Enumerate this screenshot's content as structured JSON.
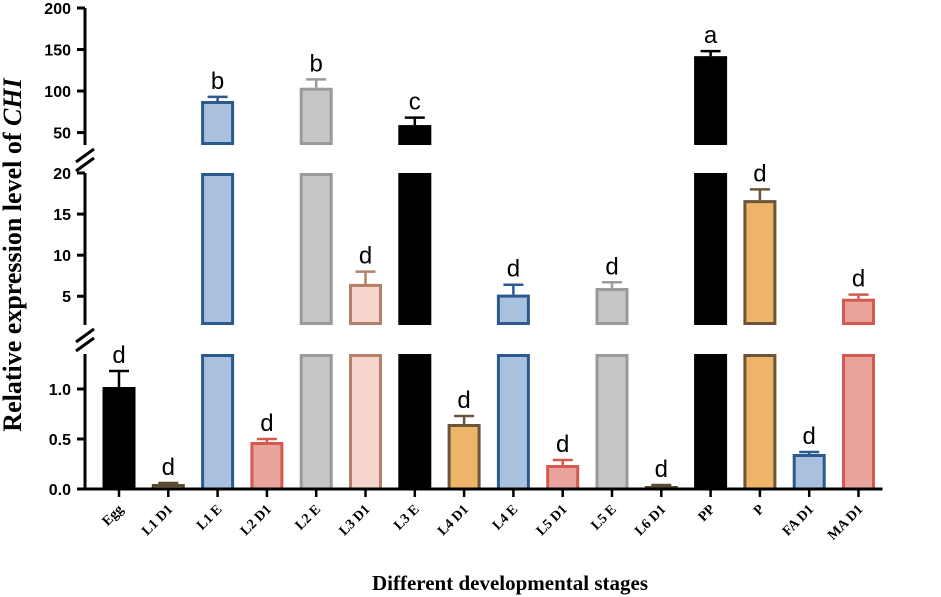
{
  "chart_data": {
    "type": "bar",
    "xlabel": "Different developmental stages",
    "ylabel_prefix": "Relative expression level of ",
    "ylabel_gene": "CHI",
    "y_segments": [
      {
        "range": [
          0,
          1.35
        ],
        "ticks": [
          0.0,
          0.5,
          1.0
        ],
        "tick_labels": [
          "0.0",
          "0.5",
          "1.0"
        ]
      },
      {
        "range": [
          1.5,
          20
        ],
        "ticks": [
          5,
          10,
          15,
          20
        ],
        "tick_labels": [
          "5",
          "10",
          "15",
          "20"
        ]
      },
      {
        "range": [
          35,
          200
        ],
        "ticks": [
          50,
          100,
          150,
          200
        ],
        "tick_labels": [
          "50",
          "100",
          "150",
          "200"
        ]
      }
    ],
    "categories": [
      "Egg",
      "L1 D1",
      "L1 E",
      "L2 D1",
      "L2 E",
      "L3 D1",
      "L3 E",
      "L4 D1",
      "L4 E",
      "L5 D1",
      "L5 E",
      "L6 D1",
      "PP",
      "P",
      "FA D1",
      "MA D1"
    ],
    "values": [
      1.02,
      0.05,
      88,
      0.47,
      104,
      6.5,
      59,
      0.65,
      5.2,
      0.24,
      6.0,
      0.03,
      142,
      16.7,
      0.35,
      4.7
    ],
    "errors": [
      0.16,
      0.01,
      5,
      0.03,
      10,
      1.5,
      9,
      0.08,
      1.2,
      0.05,
      0.7,
      0.01,
      6,
      1.3,
      0.02,
      0.5
    ],
    "significance": [
      "d",
      "d",
      "b",
      "d",
      "b",
      "d",
      "c",
      "d",
      "d",
      "d",
      "d",
      "d",
      "a",
      "d",
      "d",
      "d"
    ],
    "colors": {
      "black": {
        "fill": "#000000",
        "stroke": "#000000"
      },
      "blue": {
        "fill": "#a9c0df",
        "stroke": "#2d5a8e"
      },
      "gray": {
        "fill": "#c5c6c8",
        "stroke": "#9a9a9a"
      },
      "red": {
        "fill": "#e8a39d",
        "stroke": "#d45a50"
      },
      "pink": {
        "fill": "#f4d4cb",
        "stroke": "#b58069"
      },
      "orange": {
        "fill": "#edb46a",
        "stroke": "#6b5437"
      },
      "brown": {
        "fill": "#8e7e61",
        "stroke": "#5a4a30"
      }
    },
    "bar_color_keys": [
      "black",
      "brown",
      "blue",
      "red",
      "gray",
      "pink",
      "black",
      "orange",
      "blue",
      "red",
      "gray",
      "brown",
      "black",
      "orange",
      "blue",
      "red"
    ]
  }
}
